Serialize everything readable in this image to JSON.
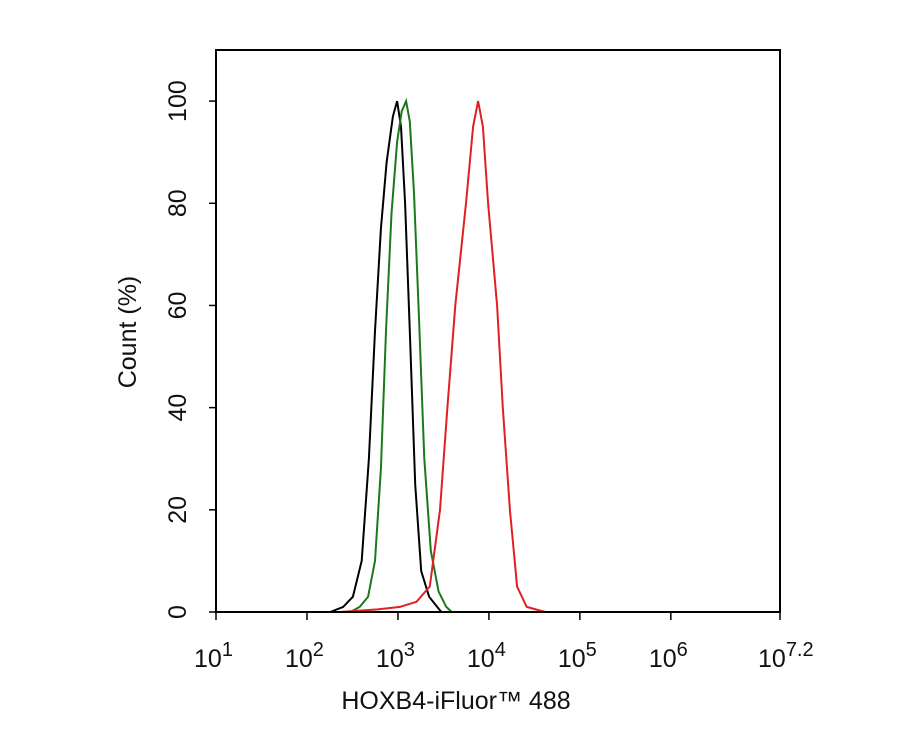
{
  "chart_data": {
    "type": "line",
    "xlabel": "HOXB4-iFluor™ 488",
    "ylabel": "Count  (%)",
    "xscale": "log",
    "xlim": [
      10,
      15848931.92
    ],
    "ylim": [
      0,
      110
    ],
    "xticks": [
      {
        "value": 10,
        "label": "10",
        "sup": "1"
      },
      {
        "value": 100,
        "label": "10",
        "sup": "2"
      },
      {
        "value": 1000,
        "label": "10",
        "sup": "3"
      },
      {
        "value": 10000,
        "label": "10",
        "sup": "4"
      },
      {
        "value": 100000,
        "label": "10",
        "sup": "5"
      },
      {
        "value": 1000000,
        "label": "10",
        "sup": "6"
      },
      {
        "value": 15848931.92,
        "label": "10",
        "sup": "7.2"
      }
    ],
    "yticks": [
      0,
      20,
      40,
      60,
      80,
      100
    ],
    "series": [
      {
        "color": "#000000",
        "x": [
          180,
          250,
          320,
          400,
          480,
          560,
          650,
          750,
          880,
          980,
          1080,
          1200,
          1350,
          1550,
          1800,
          2200,
          2700,
          3000
        ],
        "values": [
          0,
          1,
          3,
          10,
          30,
          55,
          75,
          88,
          97,
          100,
          95,
          80,
          55,
          25,
          8,
          3,
          1,
          0
        ]
      },
      {
        "color": "#1a7a1a",
        "x": [
          300,
          380,
          470,
          560,
          650,
          740,
          850,
          980,
          1100,
          1230,
          1350,
          1500,
          1700,
          1950,
          2300,
          2800,
          3400,
          3900
        ],
        "values": [
          0,
          1,
          3,
          10,
          28,
          55,
          78,
          92,
          98,
          100,
          96,
          82,
          58,
          30,
          12,
          4,
          1,
          0
        ]
      },
      {
        "color": "#e02020",
        "x": [
          230,
          600,
          1050,
          1600,
          2240,
          2900,
          3500,
          4270,
          5600,
          6700,
          7600,
          8600,
          9800,
          12300,
          14200,
          17000,
          20400,
          26000,
          41700
        ],
        "values": [
          0,
          0.5,
          1,
          2,
          5,
          20,
          40,
          60,
          80,
          95,
          100,
          95,
          80,
          60,
          40,
          20,
          5,
          1,
          0
        ]
      }
    ]
  }
}
